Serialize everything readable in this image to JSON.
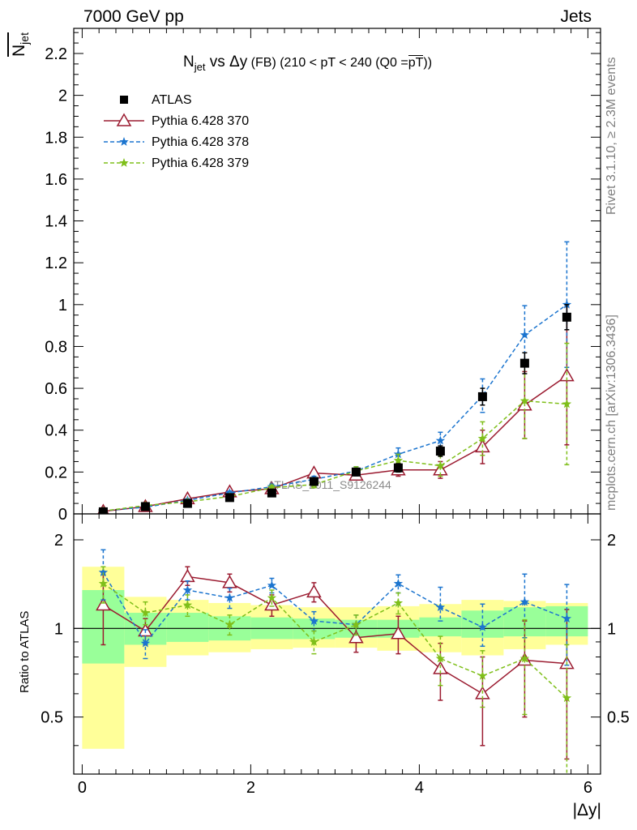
{
  "header": {
    "left": "7000 GeV pp",
    "right": "Jets"
  },
  "side": {
    "top": "Rivet 3.1.10, ≥ 2.3M events",
    "bottom": "mcplots.cern.ch [arXiv:1306.3436]"
  },
  "watermark": "ATLAS_2011_S9126244",
  "ylabel_top": "N_jet (overline)",
  "ylabel_top_main": "N",
  "ylabel_top_sub": "jet",
  "ylabel_bottom": "Ratio to ATLAS",
  "title": {
    "main": "N",
    "sub": "jet",
    "mid": " vs Δy",
    "fb": " (FB)",
    "rest": " (210 < pT < 240 (Q0 =",
    "over": "pT",
    "end": "))"
  },
  "xlabel": "|Δy|",
  "chart_data": [
    {
      "type": "scatter",
      "panel": "main",
      "x": [
        0.25,
        0.75,
        1.25,
        1.75,
        2.25,
        2.75,
        3.25,
        3.75,
        4.25,
        4.75,
        5.25,
        5.75
      ],
      "xlim": [
        -0.1,
        6.15
      ],
      "ylim": [
        0,
        2.32
      ],
      "yticks": [
        0,
        0.2,
        0.4,
        0.6,
        0.8,
        1,
        1.2,
        1.4,
        1.6,
        1.8,
        2,
        2.2
      ],
      "ytick_labels": [
        "0",
        "0.2",
        "0.4",
        "0.6",
        "0.8",
        "1",
        "1.2",
        "1.4",
        "1.6",
        "1.8",
        "2",
        "2.2"
      ],
      "xticks": [
        0,
        2,
        4,
        6
      ],
      "xtick_labels": [
        "0",
        "2",
        "4",
        "6"
      ],
      "legend_position": "top-left",
      "series": [
        {
          "name": "ATLAS",
          "color": "#000000",
          "marker": "square",
          "values": [
            0.01,
            0.035,
            0.05,
            0.078,
            0.1,
            0.155,
            0.2,
            0.22,
            0.3,
            0.56,
            0.72,
            0.94
          ],
          "errors": [
            0.004,
            0.005,
            0.006,
            0.008,
            0.01,
            0.015,
            0.018,
            0.02,
            0.025,
            0.04,
            0.05,
            0.06
          ]
        },
        {
          "name": "Pythia 6.428 370",
          "color": "#9b1b30",
          "marker": "triangle",
          "line": "solid",
          "values": [
            0.012,
            0.035,
            0.072,
            0.105,
            0.12,
            0.195,
            0.185,
            0.21,
            0.21,
            0.32,
            0.52,
            0.66
          ],
          "errors": [
            0.004,
            0.006,
            0.008,
            0.01,
            0.012,
            0.015,
            0.02,
            0.03,
            0.04,
            0.08,
            0.16,
            0.33
          ]
        },
        {
          "name": "Pythia 6.428 378",
          "color": "#1c75cf",
          "marker": "star",
          "line": "dashed",
          "values": [
            0.015,
            0.032,
            0.065,
            0.1,
            0.13,
            0.165,
            0.205,
            0.285,
            0.35,
            0.565,
            0.855,
            1.0
          ],
          "errors": [
            0.004,
            0.005,
            0.007,
            0.009,
            0.012,
            0.015,
            0.02,
            0.03,
            0.04,
            0.08,
            0.14,
            0.3
          ]
        },
        {
          "name": "Pythia 6.428 379",
          "color": "#7fbf1a",
          "marker": "star",
          "line": "dashed",
          "values": [
            0.014,
            0.04,
            0.058,
            0.083,
            0.125,
            0.14,
            0.205,
            0.255,
            0.23,
            0.36,
            0.54,
            0.525
          ],
          "errors": [
            0.004,
            0.006,
            0.008,
            0.01,
            0.012,
            0.015,
            0.02,
            0.03,
            0.05,
            0.08,
            0.18,
            0.29
          ]
        }
      ]
    },
    {
      "type": "scatter",
      "panel": "ratio",
      "ylabel": "Ratio to ATLAS",
      "xlim": [
        -0.1,
        6.15
      ],
      "ylim": [
        0.32,
        2.45
      ],
      "log_y": true,
      "yticks": [
        0.5,
        1,
        2
      ],
      "ytick_labels": [
        "0.5",
        "1",
        "2"
      ],
      "xticks": [
        0,
        2,
        4,
        6
      ],
      "xtick_labels": [
        "0",
        "2",
        "4",
        "6"
      ],
      "x": [
        0.25,
        0.75,
        1.25,
        1.75,
        2.25,
        2.75,
        3.25,
        3.75,
        4.25,
        4.75,
        5.25,
        5.75
      ],
      "bands": {
        "bin_edges": [
          0,
          0.5,
          1,
          1.5,
          2,
          2.5,
          3,
          3.5,
          4,
          4.5,
          5,
          5.5,
          6
        ],
        "green_low": [
          0.76,
          0.88,
          0.9,
          0.91,
          0.92,
          0.92,
          0.93,
          0.93,
          0.94,
          0.93,
          0.94,
          0.94
        ],
        "green_high": [
          1.35,
          1.13,
          1.13,
          1.1,
          1.09,
          1.08,
          1.07,
          1.07,
          1.09,
          1.15,
          1.18,
          1.19
        ],
        "yellow_low": [
          0.39,
          0.74,
          0.81,
          0.83,
          0.85,
          0.86,
          0.86,
          0.84,
          0.83,
          0.81,
          0.85,
          0.88
        ],
        "yellow_high": [
          1.62,
          1.28,
          1.25,
          1.22,
          1.2,
          1.18,
          1.18,
          1.19,
          1.21,
          1.25,
          1.24,
          1.22
        ]
      },
      "series": [
        {
          "name": "Pythia 6.428 370",
          "color": "#9b1b30",
          "marker": "triangle",
          "line": "solid",
          "values": [
            1.2,
            0.98,
            1.5,
            1.43,
            1.2,
            1.33,
            0.93,
            0.96,
            0.73,
            0.6,
            0.78,
            0.76
          ],
          "err_low": [
            0.32,
            0.1,
            0.1,
            0.1,
            0.1,
            0.1,
            0.1,
            0.14,
            0.16,
            0.2,
            0.28,
            0.4
          ],
          "err_high": [
            0.32,
            0.1,
            0.12,
            0.1,
            0.1,
            0.1,
            0.1,
            0.14,
            0.16,
            0.2,
            0.28,
            0.4
          ]
        },
        {
          "name": "Pythia 6.428 378",
          "color": "#1c75cf",
          "marker": "star",
          "line": "dashed",
          "values": [
            1.55,
            0.89,
            1.35,
            1.27,
            1.4,
            1.06,
            1.03,
            1.42,
            1.18,
            1.01,
            1.23,
            1.08
          ],
          "err_low": [
            0.3,
            0.1,
            0.1,
            0.1,
            0.08,
            0.08,
            0.08,
            0.1,
            0.12,
            0.14,
            0.3,
            0.33
          ],
          "err_high": [
            0.3,
            0.1,
            0.1,
            0.1,
            0.08,
            0.08,
            0.08,
            0.1,
            0.2,
            0.2,
            0.3,
            0.33
          ]
        },
        {
          "name": "Pythia 6.428 379",
          "color": "#7fbf1a",
          "marker": "star",
          "line": "dashed",
          "values": [
            1.42,
            1.13,
            1.2,
            1.03,
            1.27,
            0.9,
            1.03,
            1.22,
            0.79,
            0.69,
            0.79,
            0.58
          ],
          "err_low": [
            0.2,
            0.1,
            0.1,
            0.08,
            0.08,
            0.08,
            0.08,
            0.1,
            0.15,
            0.15,
            0.28,
            0.3
          ],
          "err_high": [
            0.2,
            0.1,
            0.1,
            0.08,
            0.08,
            0.08,
            0.08,
            0.1,
            0.15,
            0.15,
            0.28,
            0.3
          ]
        }
      ]
    }
  ]
}
